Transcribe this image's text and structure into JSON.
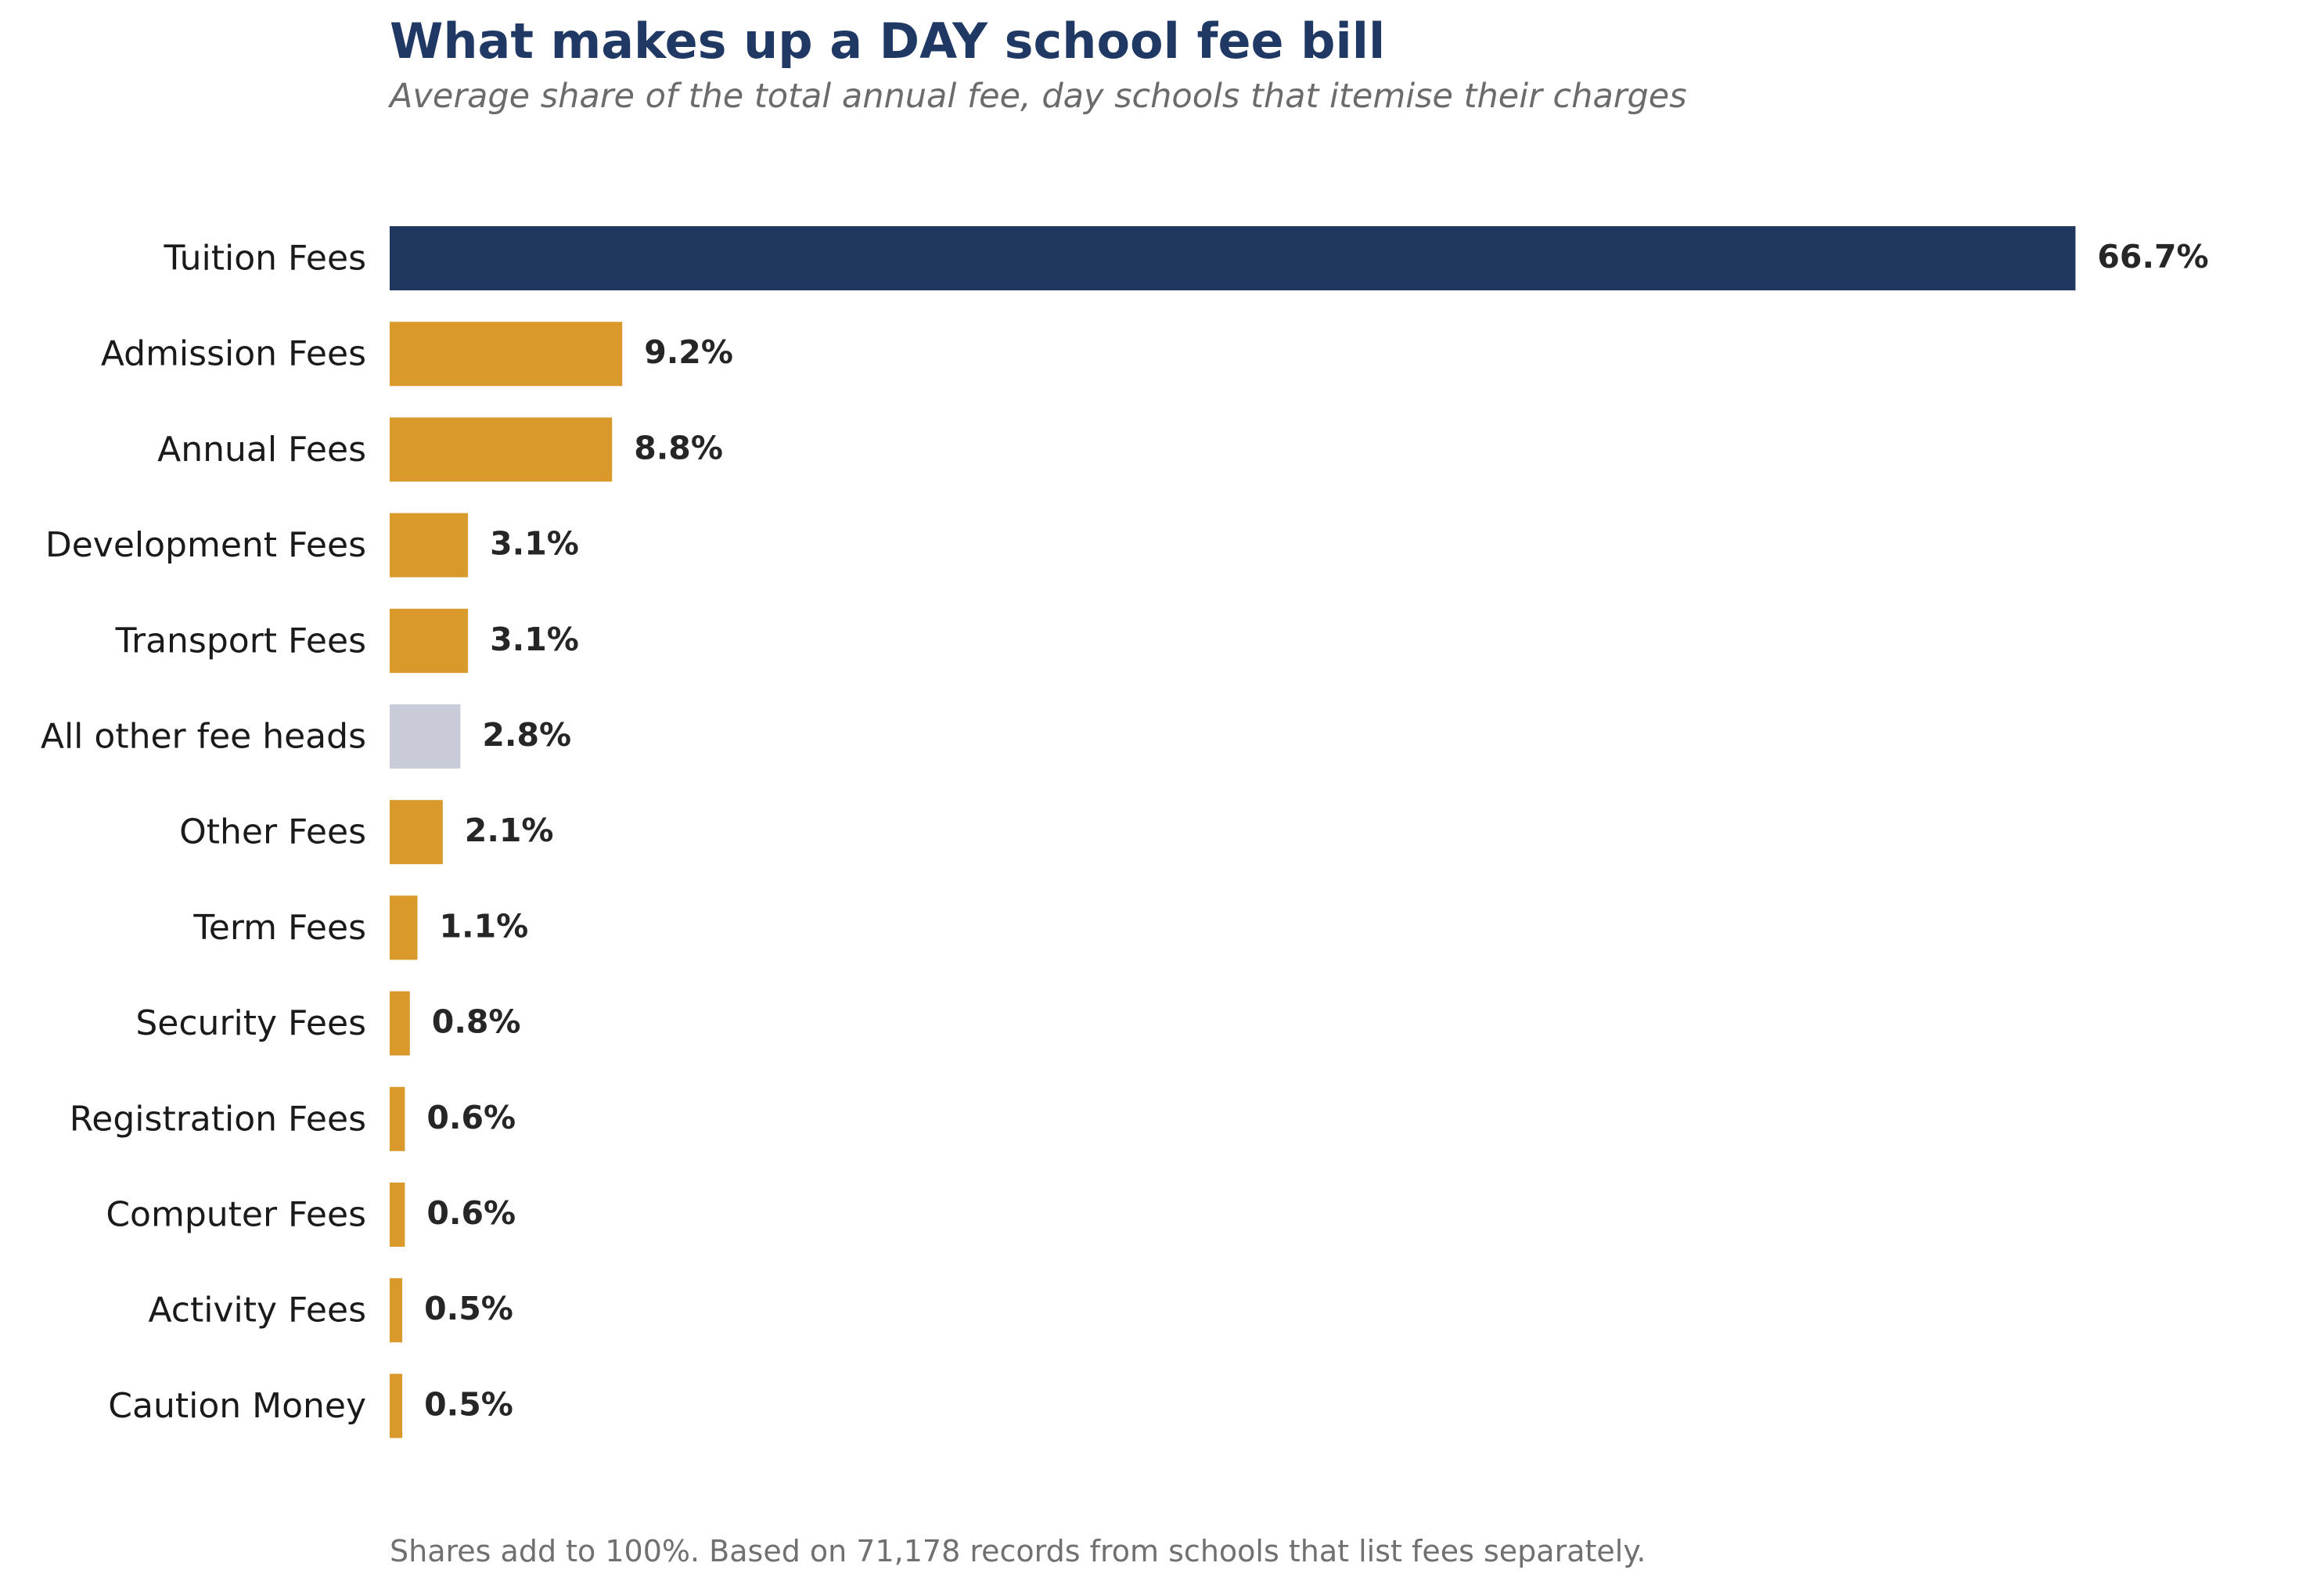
{
  "chart_data": {
    "type": "bar",
    "orientation": "horizontal",
    "title": "What makes up a DAY school fee bill",
    "subtitle": "Average share of the total annual fee, day schools that itemise their charges",
    "footnote": "Shares add to 100%. Based on 71,178 records from schools that list fees separately.",
    "categories": [
      "Tuition Fees",
      "Admission Fees",
      "Annual Fees",
      "Development Fees",
      "Transport Fees",
      "All other fee heads",
      "Other Fees",
      "Term Fees",
      "Security Fees",
      "Registration Fees",
      "Computer Fees",
      "Activity Fees",
      "Caution Money"
    ],
    "values": [
      66.7,
      9.2,
      8.8,
      3.1,
      3.1,
      2.8,
      2.1,
      1.1,
      0.8,
      0.6,
      0.6,
      0.5,
      0.5
    ],
    "value_labels": [
      "66.7%",
      "9.2%",
      "8.8%",
      "3.1%",
      "3.1%",
      "2.8%",
      "2.1%",
      "1.1%",
      "0.8%",
      "0.6%",
      "0.6%",
      "0.5%",
      "0.5%"
    ],
    "bar_colors": [
      "#20375f",
      "#d9992b",
      "#d9992b",
      "#d9992b",
      "#d9992b",
      "#c9ccd8",
      "#d9992b",
      "#d9992b",
      "#d9992b",
      "#d9992b",
      "#d9992b",
      "#d9992b",
      "#d9992b"
    ],
    "xlim": [
      0,
      75
    ],
    "xlabel": "",
    "ylabel": "",
    "grid": false,
    "legend": "none"
  }
}
